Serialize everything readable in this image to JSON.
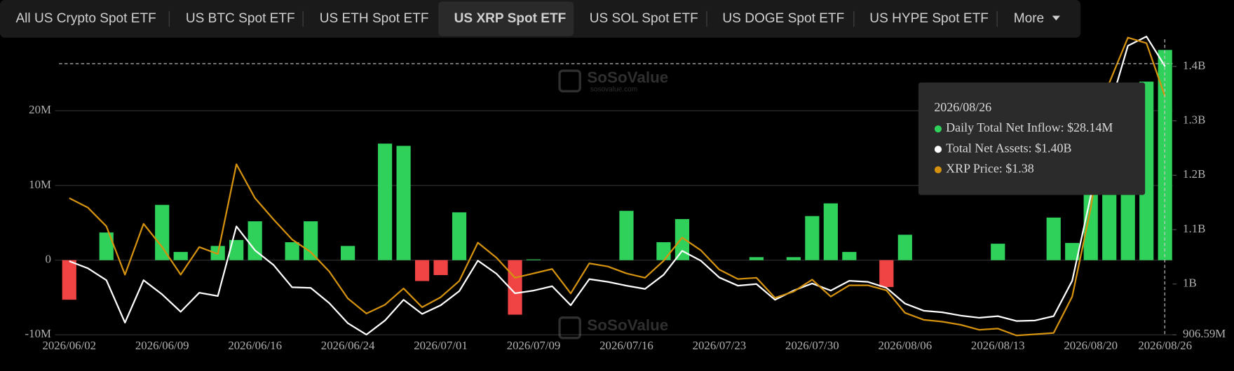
{
  "tabs": [
    "All US Crypto Spot ETF",
    "US BTC Spot ETF",
    "US ETH Spot ETF",
    "US XRP Spot ETF",
    "US SOL Spot ETF",
    "US DOGE Spot ETF",
    "US HYPE Spot ETF",
    "More"
  ],
  "active_tab": 3,
  "chart_data": {
    "type": "bar",
    "watermark": "SoSoValue",
    "watermark_sub": "sosovalue.com",
    "categories": [
      "2026/06/02",
      null,
      null,
      null,
      null,
      "2026/06/09",
      null,
      null,
      null,
      null,
      "2026/06/16",
      null,
      null,
      null,
      null,
      "2026/06/24",
      null,
      null,
      null,
      null,
      "2026/07/01",
      null,
      null,
      null,
      null,
      "2026/07/09",
      null,
      null,
      null,
      null,
      "2026/07/16",
      null,
      null,
      null,
      null,
      "2026/07/23",
      null,
      null,
      null,
      null,
      "2026/07/30",
      null,
      null,
      null,
      null,
      "2026/08/06",
      null,
      null,
      null,
      null,
      "2026/08/13",
      null,
      null,
      null,
      null,
      "2026/08/20",
      null,
      null,
      null,
      "2026/08/26"
    ],
    "ylim": [
      -10,
      30.3
    ],
    "yticks": [
      {
        "value": -10,
        "label": "-10M"
      },
      0,
      {
        "value": 10,
        "label": "10M"
      },
      {
        "value": 20,
        "label": "20M"
      }
    ],
    "y2lim": [
      0.90659,
      1.46
    ],
    "y2ticks": [
      {
        "value": 0.90659,
        "label": "906.59M"
      },
      {
        "value": 1,
        "label": "1B"
      },
      {
        "value": 1.1,
        "label": "1.1B"
      },
      {
        "value": 1.2,
        "label": "1.2B"
      },
      {
        "value": 1.3,
        "label": "1.3B"
      },
      {
        "value": 1.4,
        "label": "1.4B"
      }
    ],
    "y3lim": [
      1.0,
      1.48
    ],
    "grid": true,
    "series": [
      {
        "name": "Daily Total Net Inflow",
        "type": "bar",
        "color": "#2fd15b",
        "negative_color": "#f04343",
        "values": [
          -5.3,
          0,
          3.7,
          0,
          0,
          7.4,
          1.1,
          0,
          1.9,
          2.7,
          5.2,
          0,
          2.4,
          5.2,
          0,
          1.9,
          0,
          15.6,
          15.3,
          -2.8,
          -2,
          6.4,
          0,
          0,
          -7.3,
          0.1,
          0,
          0,
          0,
          0,
          6.6,
          0,
          2.4,
          5.5,
          0,
          0,
          0,
          0.4,
          0,
          0.4,
          5.9,
          7.6,
          1.1,
          0,
          -3.6,
          3.4,
          0,
          0,
          0,
          0,
          2.2,
          0,
          0,
          5.7,
          2.3,
          13,
          18,
          22,
          23.9,
          28.14
        ]
      },
      {
        "name": "Total Net Assets",
        "type": "line",
        "axis": "y2",
        "color": "#ffffff",
        "values": [
          1.042,
          1.029,
          1.007,
          0.929,
          1.007,
          0.981,
          0.949,
          0.984,
          0.978,
          1.106,
          1.062,
          1.035,
          0.994,
          0.993,
          0.965,
          0.928,
          0.907,
          0.933,
          0.971,
          0.945,
          0.961,
          0.987,
          1.043,
          1.019,
          0.983,
          0.988,
          0.996,
          0.961,
          1.009,
          1.004,
          0.997,
          0.991,
          1.017,
          1.061,
          1.043,
          1.012,
          0.997,
          1.0,
          0.971,
          0.988,
          1.001,
          0.988,
          1.006,
          1.004,
          0.993,
          0.964,
          0.951,
          0.948,
          0.942,
          0.938,
          0.941,
          0.932,
          0.933,
          0.941,
          1.006,
          1.162,
          1.322,
          1.438,
          1.455,
          1.4
        ]
      },
      {
        "name": "XRP Price",
        "type": "line",
        "axis": "y3",
        "color": "#d4920f",
        "values": [
          1.218,
          1.203,
          1.173,
          1.096,
          1.177,
          1.14,
          1.096,
          1.14,
          1.129,
          1.272,
          1.218,
          1.184,
          1.152,
          1.132,
          1.101,
          1.058,
          1.034,
          1.048,
          1.074,
          1.044,
          1.06,
          1.086,
          1.147,
          1.123,
          1.091,
          1.098,
          1.105,
          1.066,
          1.114,
          1.109,
          1.098,
          1.091,
          1.118,
          1.155,
          1.135,
          1.104,
          1.089,
          1.091,
          1.059,
          1.069,
          1.088,
          1.061,
          1.079,
          1.079,
          1.071,
          1.035,
          1.024,
          1.021,
          1.016,
          1.008,
          1.01,
          0.999,
          1.001,
          1.003,
          1.061,
          1.202,
          1.402,
          1.474,
          1.465,
          1.38
        ]
      }
    ],
    "tooltip": {
      "index": 59,
      "values": [
        ": $28.14M",
        ": $1.40B",
        ": $1.38"
      ]
    }
  }
}
